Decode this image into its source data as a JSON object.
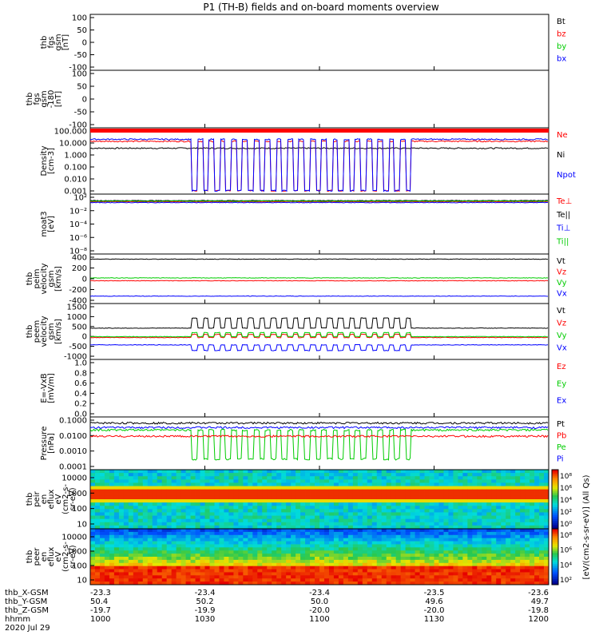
{
  "title": "P1 (TH-B) fields and on-board moments overview",
  "footer": {
    "rows": [
      "thb_X-GSM",
      "thb_Y-GSM",
      "thb_Z-GSM",
      "hhmm"
    ],
    "date": "2020 Jul 29",
    "columns": [
      [
        "-23.3",
        "50.4",
        "-19.7",
        "1000"
      ],
      [
        "-23.4",
        "50.2",
        "-19.9",
        "1030"
      ],
      [
        "-23.4",
        "50.0",
        "-20.0",
        "1100"
      ],
      [
        "-23.5",
        "49.6",
        "-20.0",
        "1130"
      ],
      [
        "-23.6",
        "49.7",
        "-19.8",
        "1200"
      ]
    ]
  },
  "colorbar_label": "[eV/(cm2-s-sr-eV)] (All Qs)",
  "colors": {
    "black": "#000000",
    "red": "#ff0000",
    "green": "#00cc00",
    "blue": "#0000ff"
  },
  "chart_data": [
    {
      "id": "fgs",
      "type": "line",
      "ylabel": [
        "thb",
        "fgs",
        "gsm",
        "[nT]"
      ],
      "ylim": [
        -100,
        100
      ],
      "yticks": [
        "100",
        "50",
        "0",
        "-50",
        "-100"
      ],
      "legend": [
        {
          "name": "Bt",
          "color": "black"
        },
        {
          "name": "bz",
          "color": "red"
        },
        {
          "name": "by",
          "color": "green"
        },
        {
          "name": "bx",
          "color": "blue"
        }
      ],
      "series": []
    },
    {
      "id": "fgs2",
      "type": "line",
      "ylabel": [
        "thb",
        "fgs",
        "gsm",
        "-180",
        "[nT]"
      ],
      "ylim": [
        -130,
        100
      ],
      "yticks": [
        "100",
        "50",
        "0",
        "-50",
        "-100"
      ],
      "legend": [],
      "series": []
    },
    {
      "id": "density",
      "type": "line",
      "yscale": "log",
      "ylabel": [
        "Density",
        "[cm-3]"
      ],
      "ylim": [
        0.0005,
        300
      ],
      "yticks": [
        "100.000",
        "10.000",
        "1.000",
        "0.100",
        "0.010",
        "0.001"
      ],
      "legend": [
        {
          "name": "Ne",
          "color": "red"
        },
        {
          "name": "Ni",
          "color": "black"
        },
        {
          "name": "Npot",
          "color": "blue"
        }
      ],
      "series": [
        {
          "name": "Ni",
          "color": "black",
          "base": 5,
          "pulse": null
        },
        {
          "name": "Ne",
          "color": "red",
          "base": 20,
          "pulse": 0.001
        },
        {
          "name": "Npot",
          "color": "blue",
          "base": 30,
          "pulse": 0.001
        }
      ]
    },
    {
      "id": "temp",
      "type": "line",
      "yscale": "log",
      "ylabel": [
        "moat3",
        "[eV]"
      ],
      "ylim": [
        1e-09,
        1000
      ],
      "yticks": [
        "10²",
        "10⁻²",
        "10⁻⁴",
        "10⁻⁶",
        "10⁻⁸"
      ],
      "legend": [
        {
          "name": "Te⊥",
          "color": "red"
        },
        {
          "name": "Te||",
          "color": "black"
        },
        {
          "name": "Ti⊥",
          "color": "blue"
        },
        {
          "name": "Ti||",
          "color": "green"
        }
      ],
      "series": [
        {
          "name": "Te||",
          "color": "black",
          "base": 50
        },
        {
          "name": "Te⊥",
          "color": "red",
          "base": 30
        },
        {
          "name": "Ti⊥",
          "color": "blue",
          "base": 20
        },
        {
          "name": "Ti||",
          "color": "green",
          "base": 40
        }
      ]
    },
    {
      "id": "ivel",
      "type": "line",
      "ylabel": [
        "thb",
        "peim",
        "velocity",
        "gsm",
        "[km/s]"
      ],
      "ylim": [
        -450,
        420
      ],
      "yticks": [
        "400",
        "200",
        "0",
        "-200",
        "-400"
      ],
      "legend": [
        {
          "name": "Vt",
          "color": "black"
        },
        {
          "name": "Vz",
          "color": "red"
        },
        {
          "name": "Vy",
          "color": "green"
        },
        {
          "name": "Vx",
          "color": "blue"
        }
      ],
      "series": [
        {
          "name": "Vt",
          "color": "black",
          "base": 330
        },
        {
          "name": "Vy",
          "color": "green",
          "base": 0
        },
        {
          "name": "Vz",
          "color": "red",
          "base": -50
        },
        {
          "name": "Vx",
          "color": "blue",
          "base": -320
        }
      ]
    },
    {
      "id": "evel",
      "type": "line",
      "ylabel": [
        "thb",
        "peem",
        "velocity",
        "gsm",
        "[km/s]"
      ],
      "ylim": [
        -1000,
        1500
      ],
      "yticks": [
        "1500",
        "1000",
        "500",
        "0",
        "-500",
        "-1000"
      ],
      "legend": [
        {
          "name": "Vt",
          "color": "black"
        },
        {
          "name": "Vz",
          "color": "red"
        },
        {
          "name": "Vy",
          "color": "green"
        },
        {
          "name": "Vx",
          "color": "blue"
        }
      ],
      "series": [
        {
          "name": "Vt",
          "color": "black",
          "base": 400,
          "pulse": 850
        },
        {
          "name": "Vz",
          "color": "red",
          "base": -20,
          "pulse": 120
        },
        {
          "name": "Vy",
          "color": "green",
          "base": 20,
          "pulse": 200
        },
        {
          "name": "Vx",
          "color": "blue",
          "base": -350,
          "pulse": -600
        }
      ]
    },
    {
      "id": "efield",
      "type": "line",
      "ylabel": [
        "E=-VxB",
        "[mV/m]"
      ],
      "ylim": [
        0,
        1
      ],
      "yticks": [
        "1.0",
        "0.8",
        "0.6",
        "0.4",
        "0.2",
        "0.0"
      ],
      "legend": [
        {
          "name": "Ez",
          "color": "red"
        },
        {
          "name": "Ey",
          "color": "green"
        },
        {
          "name": "Ex",
          "color": "blue"
        }
      ],
      "series": []
    },
    {
      "id": "pressure",
      "type": "line",
      "yscale": "log",
      "ylabel": [
        "Pressure",
        "[nPa]"
      ],
      "ylim": [
        0.0001,
        0.1
      ],
      "yticks": [
        "0.1000",
        "0.0100",
        "0.0010",
        "0.0001"
      ],
      "legend": [
        {
          "name": "Pt",
          "color": "black"
        },
        {
          "name": "Pb",
          "color": "red"
        },
        {
          "name": "Pe",
          "color": "green"
        },
        {
          "name": "Pi",
          "color": "blue"
        }
      ],
      "series": [
        {
          "name": "Pt",
          "color": "black",
          "base": 0.045
        },
        {
          "name": "Pi",
          "color": "blue",
          "base": 0.025
        },
        {
          "name": "Pe",
          "color": "green",
          "base": 0.018,
          "pulse": 0.0004
        },
        {
          "name": "Pb",
          "color": "red",
          "base": 0.008
        }
      ]
    },
    {
      "id": "ispec",
      "type": "heatmap",
      "yscale": "log",
      "ylabel": [
        "thb",
        "peir",
        "en",
        "eflux",
        "eV",
        "(cm2-s-",
        "sr-eV)"
      ],
      "yticks": [
        "10000",
        "1000",
        "100",
        "10"
      ],
      "colorbar_ticks": [
        "10⁸",
        "10⁶",
        "10⁴",
        "10²",
        "10⁰"
      ]
    },
    {
      "id": "espec",
      "type": "heatmap",
      "yscale": "log",
      "ylabel": [
        "thb",
        "peer",
        "en",
        "eflux",
        "eV",
        "(cm2-s-",
        "sr-eV)"
      ],
      "yticks": [
        "10000",
        "1000",
        "100",
        "10"
      ],
      "colorbar_ticks": [
        "10⁸",
        "10⁶",
        "10⁴",
        "10²"
      ]
    }
  ]
}
